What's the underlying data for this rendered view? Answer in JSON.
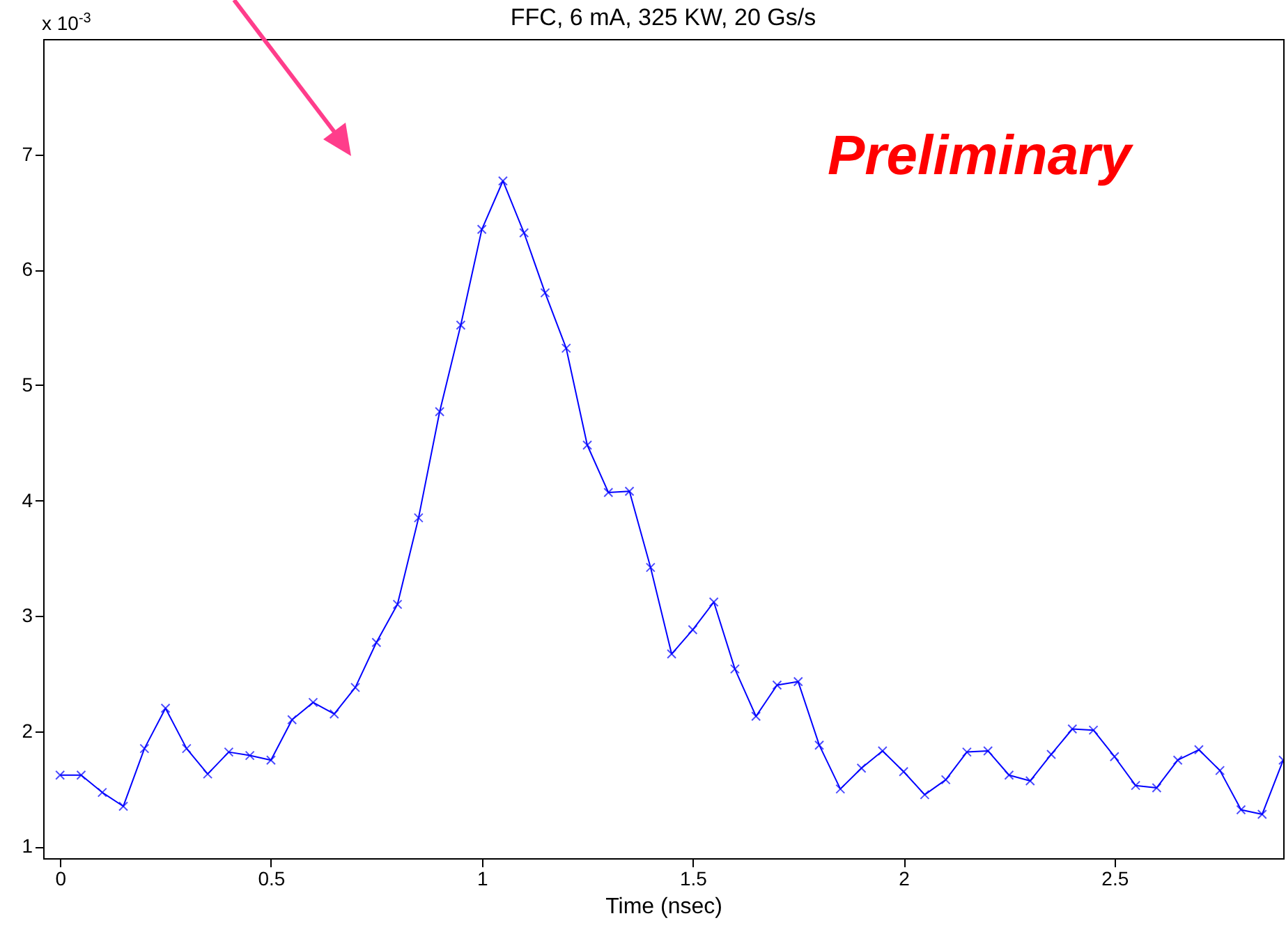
{
  "chart_data": {
    "type": "line",
    "title": "FFC, 6 mA, 325 KW, 20 Gs/s",
    "xlabel": "Time (nsec)",
    "annotations": [
      "x 10$^{-3}$",
      "Preliminary"
    ],
    "x": [
      0,
      0.05,
      0.1,
      0.15,
      0.2,
      0.25,
      0.3,
      0.35,
      0.4,
      0.45,
      0.5,
      0.55,
      0.6,
      0.65,
      0.7,
      0.75,
      0.8,
      0.85,
      0.9,
      0.95,
      1.0,
      1.05,
      1.1,
      1.15,
      1.2,
      1.25,
      1.3,
      1.35,
      1.4,
      1.45,
      1.5,
      1.55,
      1.6,
      1.65,
      1.7,
      1.75,
      1.8,
      1.85,
      1.9,
      1.95,
      2.0,
      2.05,
      2.1,
      2.15,
      2.2,
      2.25,
      2.3,
      2.35,
      2.4,
      2.45,
      2.5,
      2.55,
      2.6,
      2.65,
      2.7,
      2.75,
      2.8,
      2.85,
      2.9
    ],
    "series": [
      {
        "color": "#0000ff",
        "values": [
          1.62,
          1.62,
          1.47,
          1.35,
          1.85,
          2.2,
          1.85,
          1.63,
          1.82,
          1.79,
          1.75,
          2.1,
          2.25,
          2.15,
          2.38,
          2.77,
          3.1,
          3.85,
          4.77,
          5.52,
          6.35,
          6.77,
          6.32,
          5.8,
          5.32,
          4.48,
          4.07,
          4.08,
          3.42,
          2.67,
          2.88,
          3.12,
          2.54,
          2.13,
          2.4,
          2.43,
          1.88,
          1.5,
          1.68,
          1.83,
          1.65,
          1.45,
          1.58,
          1.82,
          1.83,
          1.62,
          1.57,
          1.8,
          2.02,
          2.01,
          1.78,
          1.53,
          1.51,
          1.75,
          1.84,
          1.66,
          1.32,
          1.28,
          1.75
        ]
      }
    ],
    "xlim": [
      -0.04,
      2.9
    ],
    "ylim": [
      0.9,
      8
    ],
    "xticks": [
      0,
      0.5,
      1,
      1.5,
      2,
      2.5
    ],
    "yticks": [
      1,
      2,
      3,
      4,
      5,
      6,
      7
    ],
    "marker": "cross",
    "line_style": "solid",
    "grid": false,
    "legend": false
  }
}
